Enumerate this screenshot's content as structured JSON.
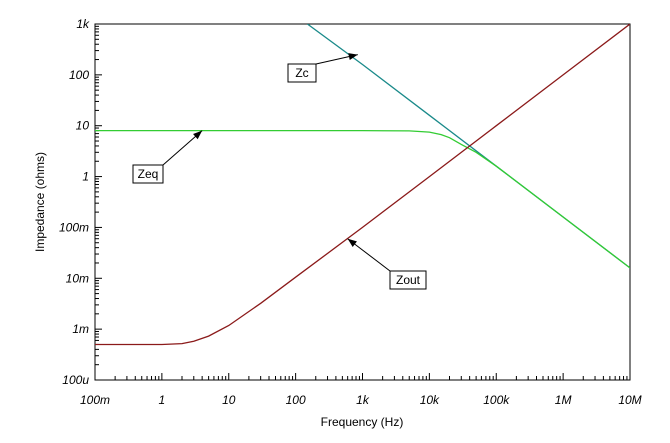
{
  "chart_data": {
    "type": "line",
    "xlabel": "Frequency (Hz)",
    "ylabel": "Impedance (ohms)",
    "xscale": "log",
    "yscale": "log",
    "xlim": [
      0.1,
      10000000
    ],
    "ylim": [
      0.0001,
      1000
    ],
    "grid": true,
    "x_ticks": [
      {
        "v": 0.1,
        "label": "100m"
      },
      {
        "v": 1,
        "label": "1"
      },
      {
        "v": 10,
        "label": "10"
      },
      {
        "v": 100,
        "label": "100"
      },
      {
        "v": 1000,
        "label": "1k"
      },
      {
        "v": 10000,
        "label": "10k"
      },
      {
        "v": 100000,
        "label": "100k"
      },
      {
        "v": 1000000,
        "label": "1M"
      },
      {
        "v": 10000000,
        "label": "10M"
      }
    ],
    "y_ticks": [
      {
        "v": 0.0001,
        "label": "100u"
      },
      {
        "v": 0.001,
        "label": "1m"
      },
      {
        "v": 0.01,
        "label": "10m"
      },
      {
        "v": 0.1,
        "label": "100m"
      },
      {
        "v": 1,
        "label": "1"
      },
      {
        "v": 10,
        "label": "10"
      },
      {
        "v": 100,
        "label": "100"
      },
      {
        "v": 1000,
        "label": "1k"
      }
    ],
    "series": [
      {
        "name": "Zc",
        "color": "#1a8a8a",
        "x": [
          150,
          1000,
          10000,
          100000,
          1000000,
          10000000
        ],
        "y": [
          1000,
          160,
          16,
          1.6,
          0.16,
          0.016
        ]
      },
      {
        "name": "Zeq",
        "color": "#33cc33",
        "x": [
          0.1,
          1,
          10,
          100,
          1000,
          5000,
          10000,
          15000,
          20000,
          30000,
          50000,
          100000,
          1000000,
          10000000
        ],
        "y": [
          8,
          8,
          8,
          8,
          8,
          7.9,
          7.5,
          6.7,
          5.8,
          4.3,
          3.0,
          1.6,
          0.16,
          0.016
        ]
      },
      {
        "name": "Zout",
        "color": "#8b1a1a",
        "x": [
          0.1,
          0.5,
          1,
          2,
          3,
          5,
          10,
          30,
          100,
          1000,
          10000,
          100000,
          1000000,
          10000000
        ],
        "y": [
          0.0005,
          0.0005,
          0.0005,
          0.00052,
          0.00058,
          0.00073,
          0.00118,
          0.00322,
          0.0105,
          0.1,
          1,
          10,
          100,
          1000
        ]
      }
    ],
    "annotations": [
      {
        "label": "Zc",
        "target_x": 850,
        "target_y": 250
      },
      {
        "label": "Zeq",
        "target_x": 4,
        "target_y": 8
      },
      {
        "label": "Zout",
        "target_x": 600,
        "target_y": 0.06
      }
    ]
  }
}
